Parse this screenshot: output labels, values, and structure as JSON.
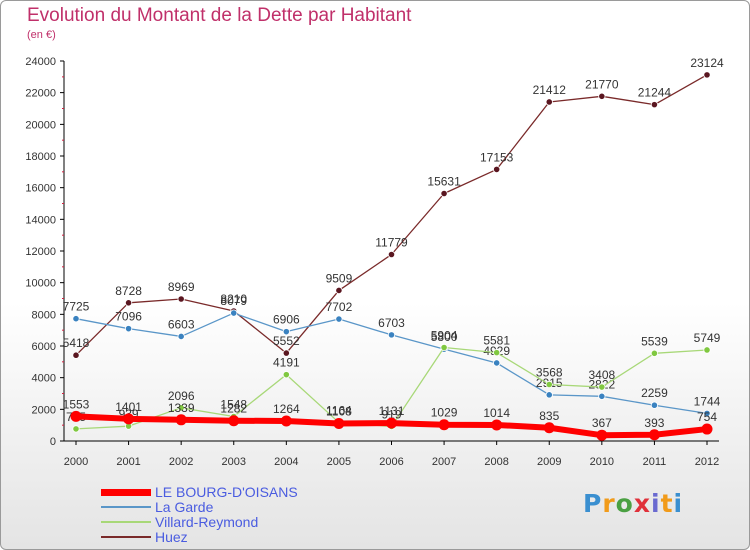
{
  "title": "Evolution du Montant de la Dette par Habitant",
  "unit": "(en €)",
  "logo": {
    "text": "Proxiti",
    "colors": [
      "#3a8fd0",
      "#f19b1a",
      "#4aa042",
      "#e0303a",
      "#6a6ad0",
      "#f19b1a",
      "#3a8fd0"
    ]
  },
  "chart_data": {
    "type": "line",
    "x": [
      "2000",
      "2001",
      "2002",
      "2003",
      "2004",
      "2005",
      "2006",
      "2007",
      "2008",
      "2009",
      "2010",
      "2011",
      "2012"
    ],
    "ylim": [
      0,
      24000
    ],
    "yticks": [
      "0",
      "2000",
      "4000",
      "6000",
      "8000",
      "10000",
      "12000",
      "14000",
      "16000",
      "18000",
      "20000",
      "22000",
      "24000"
    ],
    "grid": false,
    "legend": "bottom-left",
    "series": [
      {
        "name": "Huez",
        "color": "#7a2a2a",
        "marker": "#5a1620",
        "width": 1.3,
        "values": [
          5418,
          8728,
          8969,
          8210,
          5552,
          9509,
          11779,
          15631,
          17153,
          21412,
          21770,
          21244,
          23124
        ],
        "labels": [
          "5418",
          "8728",
          "8969",
          "8210",
          "5552",
          "9509",
          "11779",
          "15631",
          "17153",
          "21412",
          "21770",
          "21244",
          "23124"
        ]
      },
      {
        "name": "La Garde",
        "color": "#5a96c8",
        "marker": "#3a82c0",
        "width": 1.3,
        "values": [
          7725,
          7096,
          6603,
          8079,
          6906,
          7702,
          6703,
          5800,
          4929,
          2915,
          2822,
          2259,
          1744
        ],
        "labels": [
          "7725",
          "7096",
          "6603",
          "8079",
          "6906",
          "7702",
          "6703",
          "5800",
          "4929",
          "2915",
          "2822",
          "2259",
          "1744"
        ]
      },
      {
        "name": "Villard-Reymond",
        "color": "#a8d878",
        "marker": "#80c840",
        "width": 1.3,
        "values": [
          765,
          939,
          2096,
          1548,
          4191,
          1164,
          919,
          5904,
          5581,
          3568,
          3408,
          5539,
          5749
        ],
        "labels": [
          "765",
          "939",
          "2096",
          "1548",
          "4191",
          "1164",
          "919",
          "5904",
          "5581",
          "3568",
          "3408",
          "5539",
          "5749"
        ]
      },
      {
        "name": "LE BOURG-D'OISANS",
        "color": "#ff0000",
        "marker": "#ff0000",
        "width": 6,
        "values": [
          1553,
          1401,
          1339,
          1282,
          1264,
          1108,
          1131,
          1029,
          1014,
          835,
          367,
          393,
          754
        ],
        "labels": [
          "1553",
          "1401",
          "1339",
          "1282",
          "1264",
          "1108",
          "1131",
          "1029",
          "1014",
          "835",
          "367",
          "393",
          "754"
        ]
      }
    ]
  }
}
